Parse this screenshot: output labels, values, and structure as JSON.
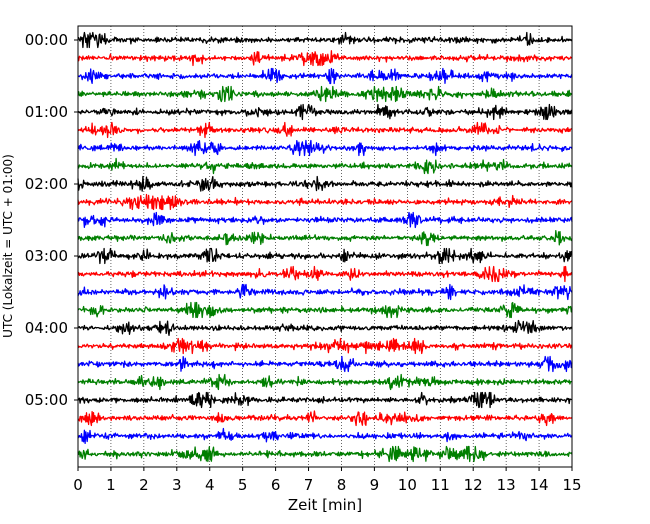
{
  "chart_data": {
    "type": "line",
    "title": "",
    "xlabel": "Zeit  [min]",
    "ylabel": "UTC (Lokalzeit = UTC + 01:00)",
    "xlim": [
      0,
      15
    ],
    "x_ticks": [
      "0",
      "1",
      "2",
      "3",
      "4",
      "5",
      "6",
      "7",
      "8",
      "9",
      "10",
      "11",
      "12",
      "13",
      "14",
      "15"
    ],
    "y_tick_labels": [
      "00:00",
      "01:00",
      "02:00",
      "03:00",
      "04:00",
      "05:00"
    ],
    "grid": "vertical-dotted",
    "trace_interval_minutes": 15,
    "trace_count": 24,
    "trace_colors": [
      "#000000",
      "#ff0000",
      "#0000ff",
      "#007f00"
    ],
    "trace_start_times": [
      "00:00",
      "00:15",
      "00:30",
      "00:45",
      "01:00",
      "01:15",
      "01:30",
      "01:45",
      "02:00",
      "02:15",
      "02:30",
      "02:45",
      "03:00",
      "03:15",
      "03:30",
      "03:45",
      "04:00",
      "04:15",
      "04:30",
      "04:45",
      "05:00",
      "05:15",
      "05:30",
      "05:45"
    ]
  }
}
